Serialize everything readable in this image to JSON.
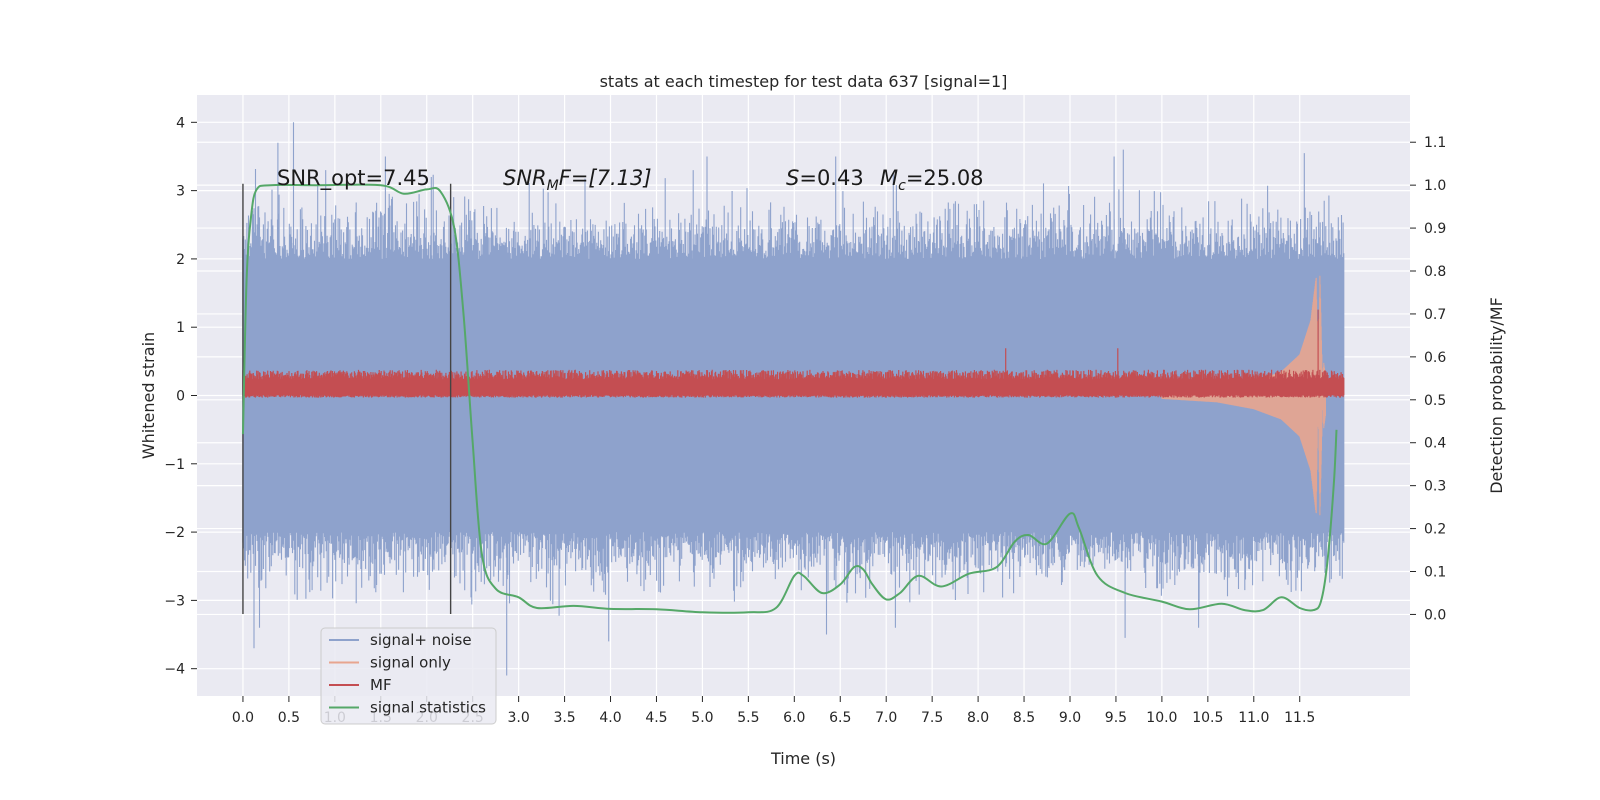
{
  "chart_data": {
    "type": "line",
    "title": "stats at each timestep for test data 637 [signal=1]",
    "xlabel": "Time (s)",
    "ylabel_left": "Whitened strain",
    "ylabel_right": "Detection probability/MF",
    "xlim": [
      -0.5,
      12.7
    ],
    "ylim_left": [
      -4.4,
      4.4
    ],
    "ylim_right": [
      -0.19,
      1.21
    ],
    "x_ticks": [
      "0.0",
      "0.5",
      "1.0",
      "1.5",
      "2.0",
      "2.5",
      "3.0",
      "3.5",
      "4.0",
      "4.5",
      "5.0",
      "5.5",
      "6.0",
      "6.5",
      "7.0",
      "7.5",
      "8.0",
      "8.5",
      "9.0",
      "9.5",
      "10.0",
      "10.5",
      "11.0",
      "11.5"
    ],
    "y_ticks_left": [
      "−4",
      "−3",
      "−2",
      "−1",
      "0",
      "1",
      "2",
      "3",
      "4"
    ],
    "y_ticks_right": [
      "0.0",
      "0.1",
      "0.2",
      "0.3",
      "0.4",
      "0.5",
      "0.6",
      "0.7",
      "0.8",
      "0.9",
      "1.0",
      "1.1"
    ],
    "grid": true,
    "legend_position": "lower-left",
    "colors": {
      "background": "#eaeaf2",
      "grid": "#ffffff",
      "signal_noise": "#8ea2cc",
      "signal_only": "#e8a58f",
      "mf": "#c44e52",
      "stat": "#55a868",
      "vline": "#444444"
    },
    "annotations": {
      "snr_opt": "SNR_opt=7.45",
      "snr_mf_base": "SNR",
      "snr_mf_sub": "M",
      "snr_mf_rest": "F=[7.13]",
      "s_var": "S",
      "s_val": "=0.43",
      "mc_var": "M",
      "mc_sub": "c",
      "mc_val": "=25.08"
    },
    "vlines_x": [
      0.0,
      2.26
    ],
    "vline_range": [
      -3.2,
      3.1
    ],
    "series": [
      {
        "name": "signal+ noise",
        "axis": "left",
        "x_range": [
          0.0,
          11.98
        ],
        "envelope_y": [
          -2.0,
          2.0
        ],
        "spike_peaks": [
          {
            "x": 0.38,
            "y": 3.7
          },
          {
            "x": 0.55,
            "y": 4.0
          },
          {
            "x": 0.9,
            "y": 3.3
          },
          {
            "x": 1.55,
            "y": 3.5
          },
          {
            "x": 2.05,
            "y": 3.2
          },
          {
            "x": 4.9,
            "y": 3.3
          },
          {
            "x": 5.05,
            "y": 3.5
          },
          {
            "x": 6.45,
            "y": 3.5
          },
          {
            "x": 9.48,
            "y": 3.5
          },
          {
            "x": 9.58,
            "y": 3.6
          },
          {
            "x": 11.55,
            "y": 3.55
          },
          {
            "x": 0.12,
            "y": -3.7
          },
          {
            "x": 0.18,
            "y": -3.4
          },
          {
            "x": 2.87,
            "y": -4.1
          },
          {
            "x": 3.98,
            "y": -3.6
          },
          {
            "x": 6.35,
            "y": -3.5
          },
          {
            "x": 7.1,
            "y": -3.4
          },
          {
            "x": 9.6,
            "y": -3.55
          },
          {
            "x": 10.4,
            "y": -3.4
          }
        ]
      },
      {
        "name": "signal only",
        "axis": "left",
        "points": [
          {
            "x": 10.0,
            "y": 0.05
          },
          {
            "x": 10.6,
            "y": 0.1
          },
          {
            "x": 11.0,
            "y": 0.2
          },
          {
            "x": 11.3,
            "y": 0.35
          },
          {
            "x": 11.5,
            "y": 0.6
          },
          {
            "x": 11.62,
            "y": 1.1
          },
          {
            "x": 11.68,
            "y": 1.75
          },
          {
            "x": 11.72,
            "y": -1.8
          },
          {
            "x": 11.76,
            "y": 0.5
          },
          {
            "x": 11.8,
            "y": 0.1
          }
        ]
      },
      {
        "name": "MF",
        "axis": "right",
        "x_range": [
          0.0,
          11.98
        ],
        "band_y": [
          0.505,
          0.56
        ],
        "spike_peaks": [
          {
            "x": 8.3,
            "y": 0.62
          },
          {
            "x": 9.52,
            "y": 0.62
          },
          {
            "x": 11.7,
            "y": 0.71
          }
        ]
      },
      {
        "name": "signal statistics",
        "axis": "right",
        "points": [
          {
            "x": 0.0,
            "y": 0.42
          },
          {
            "x": 0.04,
            "y": 0.78
          },
          {
            "x": 0.09,
            "y": 0.93
          },
          {
            "x": 0.15,
            "y": 0.99
          },
          {
            "x": 0.3,
            "y": 1.0
          },
          {
            "x": 0.8,
            "y": 1.0
          },
          {
            "x": 1.5,
            "y": 1.0
          },
          {
            "x": 1.75,
            "y": 0.98
          },
          {
            "x": 2.0,
            "y": 0.99
          },
          {
            "x": 2.15,
            "y": 0.985
          },
          {
            "x": 2.3,
            "y": 0.9
          },
          {
            "x": 2.4,
            "y": 0.7
          },
          {
            "x": 2.5,
            "y": 0.4
          },
          {
            "x": 2.6,
            "y": 0.14
          },
          {
            "x": 2.75,
            "y": 0.06
          },
          {
            "x": 3.0,
            "y": 0.04
          },
          {
            "x": 3.2,
            "y": 0.015
          },
          {
            "x": 3.6,
            "y": 0.02
          },
          {
            "x": 4.0,
            "y": 0.013
          },
          {
            "x": 4.5,
            "y": 0.012
          },
          {
            "x": 5.0,
            "y": 0.005
          },
          {
            "x": 5.5,
            "y": 0.005
          },
          {
            "x": 5.8,
            "y": 0.015
          },
          {
            "x": 6.0,
            "y": 0.09
          },
          {
            "x": 6.1,
            "y": 0.09
          },
          {
            "x": 6.3,
            "y": 0.05
          },
          {
            "x": 6.5,
            "y": 0.07
          },
          {
            "x": 6.65,
            "y": 0.11
          },
          {
            "x": 6.75,
            "y": 0.105
          },
          {
            "x": 6.85,
            "y": 0.07
          },
          {
            "x": 7.0,
            "y": 0.035
          },
          {
            "x": 7.15,
            "y": 0.05
          },
          {
            "x": 7.35,
            "y": 0.09
          },
          {
            "x": 7.6,
            "y": 0.065
          },
          {
            "x": 7.9,
            "y": 0.095
          },
          {
            "x": 8.2,
            "y": 0.11
          },
          {
            "x": 8.4,
            "y": 0.17
          },
          {
            "x": 8.55,
            "y": 0.185
          },
          {
            "x": 8.75,
            "y": 0.165
          },
          {
            "x": 9.0,
            "y": 0.235
          },
          {
            "x": 9.1,
            "y": 0.2
          },
          {
            "x": 9.3,
            "y": 0.09
          },
          {
            "x": 9.6,
            "y": 0.05
          },
          {
            "x": 10.0,
            "y": 0.03
          },
          {
            "x": 10.3,
            "y": 0.012
          },
          {
            "x": 10.65,
            "y": 0.025
          },
          {
            "x": 10.9,
            "y": 0.01
          },
          {
            "x": 11.1,
            "y": 0.01
          },
          {
            "x": 11.3,
            "y": 0.04
          },
          {
            "x": 11.5,
            "y": 0.015
          },
          {
            "x": 11.65,
            "y": 0.01
          },
          {
            "x": 11.73,
            "y": 0.03
          },
          {
            "x": 11.8,
            "y": 0.12
          },
          {
            "x": 11.87,
            "y": 0.3
          },
          {
            "x": 11.9,
            "y": 0.43
          }
        ]
      }
    ]
  }
}
